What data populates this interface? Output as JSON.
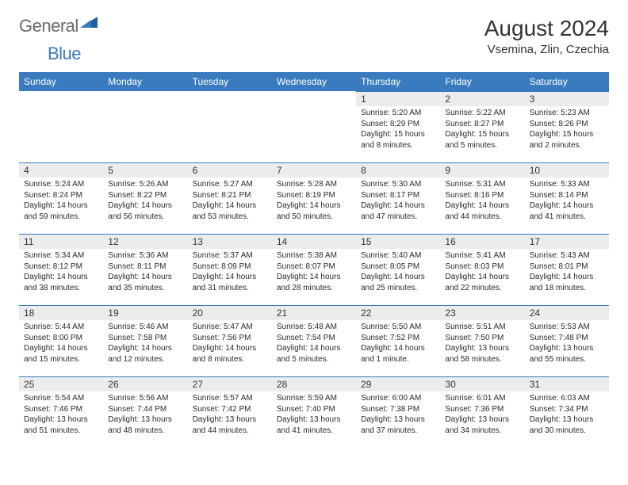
{
  "brand": {
    "word1": "General",
    "word2": "Blue"
  },
  "title": "August 2024",
  "location": "Vsemina, Zlin, Czechia",
  "colors": {
    "header_bg": "#3a7bbf",
    "header_text": "#ffffff",
    "daynum_bg": "#ececec",
    "border": "#3a7bbf",
    "text": "#2b2b2b",
    "page_bg": "#ffffff",
    "brand_gray": "#6a6a6a",
    "brand_blue": "#3a7bbf"
  },
  "fonts": {
    "title_size": 28,
    "location_size": 15,
    "th_size": 12,
    "cell_size": 10
  },
  "weekdays": [
    "Sunday",
    "Monday",
    "Tuesday",
    "Wednesday",
    "Thursday",
    "Friday",
    "Saturday"
  ],
  "grid": {
    "rows": 5,
    "cols": 7,
    "first_weekday_index": 4,
    "days_in_month": 31
  },
  "days": {
    "1": {
      "sunrise": "5:20 AM",
      "sunset": "8:29 PM",
      "daylight": "15 hours and 8 minutes."
    },
    "2": {
      "sunrise": "5:22 AM",
      "sunset": "8:27 PM",
      "daylight": "15 hours and 5 minutes."
    },
    "3": {
      "sunrise": "5:23 AM",
      "sunset": "8:26 PM",
      "daylight": "15 hours and 2 minutes."
    },
    "4": {
      "sunrise": "5:24 AM",
      "sunset": "8:24 PM",
      "daylight": "14 hours and 59 minutes."
    },
    "5": {
      "sunrise": "5:26 AM",
      "sunset": "8:22 PM",
      "daylight": "14 hours and 56 minutes."
    },
    "6": {
      "sunrise": "5:27 AM",
      "sunset": "8:21 PM",
      "daylight": "14 hours and 53 minutes."
    },
    "7": {
      "sunrise": "5:28 AM",
      "sunset": "8:19 PM",
      "daylight": "14 hours and 50 minutes."
    },
    "8": {
      "sunrise": "5:30 AM",
      "sunset": "8:17 PM",
      "daylight": "14 hours and 47 minutes."
    },
    "9": {
      "sunrise": "5:31 AM",
      "sunset": "8:16 PM",
      "daylight": "14 hours and 44 minutes."
    },
    "10": {
      "sunrise": "5:33 AM",
      "sunset": "8:14 PM",
      "daylight": "14 hours and 41 minutes."
    },
    "11": {
      "sunrise": "5:34 AM",
      "sunset": "8:12 PM",
      "daylight": "14 hours and 38 minutes."
    },
    "12": {
      "sunrise": "5:36 AM",
      "sunset": "8:11 PM",
      "daylight": "14 hours and 35 minutes."
    },
    "13": {
      "sunrise": "5:37 AM",
      "sunset": "8:09 PM",
      "daylight": "14 hours and 31 minutes."
    },
    "14": {
      "sunrise": "5:38 AM",
      "sunset": "8:07 PM",
      "daylight": "14 hours and 28 minutes."
    },
    "15": {
      "sunrise": "5:40 AM",
      "sunset": "8:05 PM",
      "daylight": "14 hours and 25 minutes."
    },
    "16": {
      "sunrise": "5:41 AM",
      "sunset": "8:03 PM",
      "daylight": "14 hours and 22 minutes."
    },
    "17": {
      "sunrise": "5:43 AM",
      "sunset": "8:01 PM",
      "daylight": "14 hours and 18 minutes."
    },
    "18": {
      "sunrise": "5:44 AM",
      "sunset": "8:00 PM",
      "daylight": "14 hours and 15 minutes."
    },
    "19": {
      "sunrise": "5:46 AM",
      "sunset": "7:58 PM",
      "daylight": "14 hours and 12 minutes."
    },
    "20": {
      "sunrise": "5:47 AM",
      "sunset": "7:56 PM",
      "daylight": "14 hours and 8 minutes."
    },
    "21": {
      "sunrise": "5:48 AM",
      "sunset": "7:54 PM",
      "daylight": "14 hours and 5 minutes."
    },
    "22": {
      "sunrise": "5:50 AM",
      "sunset": "7:52 PM",
      "daylight": "14 hours and 1 minute."
    },
    "23": {
      "sunrise": "5:51 AM",
      "sunset": "7:50 PM",
      "daylight": "13 hours and 58 minutes."
    },
    "24": {
      "sunrise": "5:53 AM",
      "sunset": "7:48 PM",
      "daylight": "13 hours and 55 minutes."
    },
    "25": {
      "sunrise": "5:54 AM",
      "sunset": "7:46 PM",
      "daylight": "13 hours and 51 minutes."
    },
    "26": {
      "sunrise": "5:56 AM",
      "sunset": "7:44 PM",
      "daylight": "13 hours and 48 minutes."
    },
    "27": {
      "sunrise": "5:57 AM",
      "sunset": "7:42 PM",
      "daylight": "13 hours and 44 minutes."
    },
    "28": {
      "sunrise": "5:59 AM",
      "sunset": "7:40 PM",
      "daylight": "13 hours and 41 minutes."
    },
    "29": {
      "sunrise": "6:00 AM",
      "sunset": "7:38 PM",
      "daylight": "13 hours and 37 minutes."
    },
    "30": {
      "sunrise": "6:01 AM",
      "sunset": "7:36 PM",
      "daylight": "13 hours and 34 minutes."
    },
    "31": {
      "sunrise": "6:03 AM",
      "sunset": "7:34 PM",
      "daylight": "13 hours and 30 minutes."
    }
  },
  "labels": {
    "sunrise": "Sunrise:",
    "sunset": "Sunset:",
    "daylight": "Daylight:"
  }
}
